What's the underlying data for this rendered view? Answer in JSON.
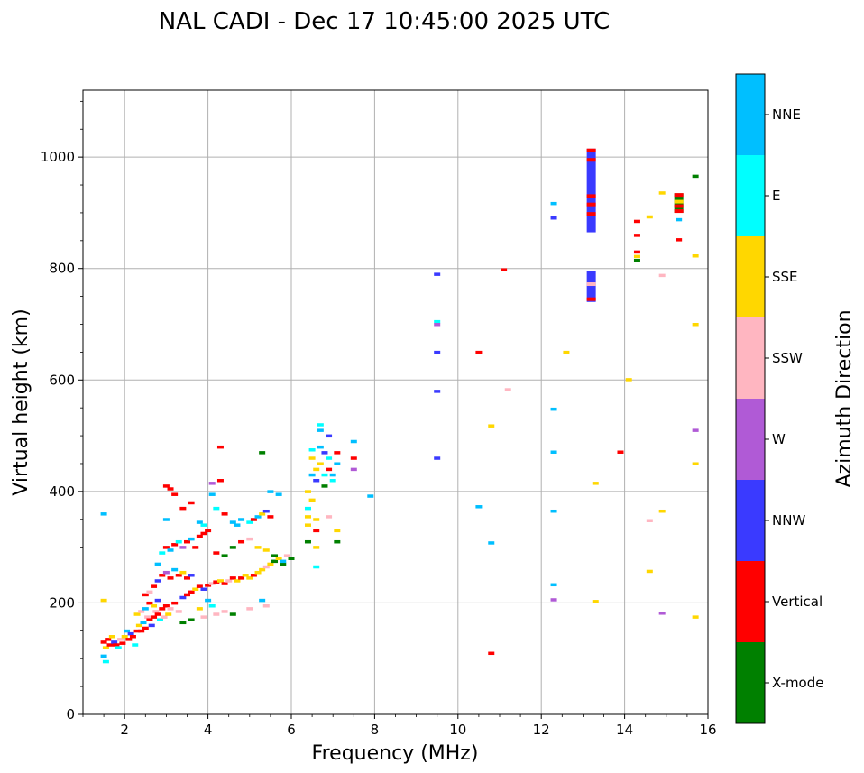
{
  "chart_data": {
    "type": "scatter",
    "title": "NAL CADI - Dec 17 10:45:00 2025 UTC",
    "xlabel": "Frequency (MHz)",
    "ylabel": "Virtual height (km)",
    "xlim": [
      1,
      16
    ],
    "ylim": [
      0,
      1120
    ],
    "xticks": [
      2,
      4,
      6,
      8,
      10,
      12,
      14,
      16
    ],
    "yticks": [
      0,
      200,
      400,
      600,
      800,
      1000
    ],
    "grid": true,
    "colorbar": {
      "label": "Azimuth Direction",
      "categories": [
        {
          "name": "X-mode",
          "color": "#008000"
        },
        {
          "name": "Vertical",
          "color": "#ff0000"
        },
        {
          "name": "NNW",
          "color": "#3a3aff"
        },
        {
          "name": "W",
          "color": "#b05ad6"
        },
        {
          "name": "SSW",
          "color": "#ffb6c1"
        },
        {
          "name": "SSE",
          "color": "#ffd700"
        },
        {
          "name": "E",
          "color": "#00ffff"
        },
        {
          "name": "NNE",
          "color": "#00bfff"
        }
      ]
    },
    "points": [
      {
        "f": 1.5,
        "h": 130,
        "c": "Vertical"
      },
      {
        "f": 1.55,
        "h": 120,
        "c": "SSE"
      },
      {
        "f": 1.6,
        "h": 135,
        "c": "Vertical"
      },
      {
        "f": 1.5,
        "h": 105,
        "c": "NNE"
      },
      {
        "f": 1.55,
        "h": 95,
        "c": "E"
      },
      {
        "f": 1.5,
        "h": 205,
        "c": "SSE"
      },
      {
        "f": 1.5,
        "h": 360,
        "c": "NNE"
      },
      {
        "f": 1.65,
        "h": 125,
        "c": "Vertical"
      },
      {
        "f": 1.7,
        "h": 140,
        "c": "SSE"
      },
      {
        "f": 1.75,
        "h": 130,
        "c": "NNW"
      },
      {
        "f": 1.8,
        "h": 125,
        "c": "Vertical"
      },
      {
        "f": 1.85,
        "h": 120,
        "c": "E"
      },
      {
        "f": 1.9,
        "h": 135,
        "c": "SSW"
      },
      {
        "f": 1.95,
        "h": 128,
        "c": "Vertical"
      },
      {
        "f": 2.0,
        "h": 140,
        "c": "SSE"
      },
      {
        "f": 2.05,
        "h": 150,
        "c": "NNE"
      },
      {
        "f": 2.1,
        "h": 135,
        "c": "Vertical"
      },
      {
        "f": 2.15,
        "h": 145,
        "c": "NNW"
      },
      {
        "f": 2.2,
        "h": 140,
        "c": "Vertical"
      },
      {
        "f": 2.25,
        "h": 125,
        "c": "E"
      },
      {
        "f": 2.3,
        "h": 150,
        "c": "Vertical"
      },
      {
        "f": 2.35,
        "h": 160,
        "c": "SSE"
      },
      {
        "f": 2.4,
        "h": 150,
        "c": "Vertical"
      },
      {
        "f": 2.45,
        "h": 165,
        "c": "NNE"
      },
      {
        "f": 2.5,
        "h": 155,
        "c": "Vertical"
      },
      {
        "f": 2.55,
        "h": 175,
        "c": "SSW"
      },
      {
        "f": 2.6,
        "h": 170,
        "c": "Vertical"
      },
      {
        "f": 2.65,
        "h": 160,
        "c": "NNW"
      },
      {
        "f": 2.7,
        "h": 175,
        "c": "Vertical"
      },
      {
        "f": 2.75,
        "h": 185,
        "c": "SSW"
      },
      {
        "f": 2.8,
        "h": 180,
        "c": "Vertical"
      },
      {
        "f": 2.85,
        "h": 170,
        "c": "E"
      },
      {
        "f": 2.9,
        "h": 190,
        "c": "Vertical"
      },
      {
        "f": 2.95,
        "h": 175,
        "c": "SSW"
      },
      {
        "f": 3.0,
        "h": 195,
        "c": "Vertical"
      },
      {
        "f": 3.05,
        "h": 180,
        "c": "SSE"
      },
      {
        "f": 3.1,
        "h": 190,
        "c": "SSW"
      },
      {
        "f": 3.2,
        "h": 200,
        "c": "Vertical"
      },
      {
        "f": 3.3,
        "h": 185,
        "c": "SSW"
      },
      {
        "f": 3.4,
        "h": 210,
        "c": "NNW"
      },
      {
        "f": 3.5,
        "h": 215,
        "c": "Vertical"
      },
      {
        "f": 3.6,
        "h": 220,
        "c": "Vertical"
      },
      {
        "f": 3.7,
        "h": 225,
        "c": "SSE"
      },
      {
        "f": 3.8,
        "h": 230,
        "c": "Vertical"
      },
      {
        "f": 3.9,
        "h": 225,
        "c": "NNW"
      },
      {
        "f": 4.0,
        "h": 232,
        "c": "Vertical"
      },
      {
        "f": 4.1,
        "h": 235,
        "c": "SSW"
      },
      {
        "f": 4.2,
        "h": 238,
        "c": "Vertical"
      },
      {
        "f": 4.3,
        "h": 240,
        "c": "SSE"
      },
      {
        "f": 4.4,
        "h": 235,
        "c": "Vertical"
      },
      {
        "f": 4.5,
        "h": 240,
        "c": "SSW"
      },
      {
        "f": 4.6,
        "h": 245,
        "c": "Vertical"
      },
      {
        "f": 4.7,
        "h": 240,
        "c": "SSE"
      },
      {
        "f": 4.8,
        "h": 245,
        "c": "Vertical"
      },
      {
        "f": 4.9,
        "h": 250,
        "c": "SSE"
      },
      {
        "f": 5.0,
        "h": 245,
        "c": "SSE"
      },
      {
        "f": 5.1,
        "h": 250,
        "c": "Vertical"
      },
      {
        "f": 5.2,
        "h": 255,
        "c": "SSE"
      },
      {
        "f": 5.3,
        "h": 260,
        "c": "SSE"
      },
      {
        "f": 5.4,
        "h": 265,
        "c": "SSW"
      },
      {
        "f": 5.5,
        "h": 270,
        "c": "SSE"
      },
      {
        "f": 5.6,
        "h": 275,
        "c": "X-mode"
      },
      {
        "f": 5.7,
        "h": 280,
        "c": "SSE"
      },
      {
        "f": 5.8,
        "h": 270,
        "c": "X-mode"
      },
      {
        "f": 5.9,
        "h": 285,
        "c": "SSW"
      },
      {
        "f": 6.0,
        "h": 280,
        "c": "X-mode"
      },
      {
        "f": 2.3,
        "h": 180,
        "c": "SSE"
      },
      {
        "f": 2.4,
        "h": 185,
        "c": "SSW"
      },
      {
        "f": 2.5,
        "h": 190,
        "c": "NNE"
      },
      {
        "f": 2.6,
        "h": 200,
        "c": "Vertical"
      },
      {
        "f": 2.7,
        "h": 195,
        "c": "SSE"
      },
      {
        "f": 2.8,
        "h": 205,
        "c": "NNW"
      },
      {
        "f": 2.5,
        "h": 215,
        "c": "Vertical"
      },
      {
        "f": 2.6,
        "h": 220,
        "c": "SSW"
      },
      {
        "f": 2.7,
        "h": 230,
        "c": "Vertical"
      },
      {
        "f": 2.8,
        "h": 240,
        "c": "NNW"
      },
      {
        "f": 2.9,
        "h": 250,
        "c": "Vertical"
      },
      {
        "f": 3.0,
        "h": 255,
        "c": "W"
      },
      {
        "f": 3.1,
        "h": 245,
        "c": "Vertical"
      },
      {
        "f": 3.2,
        "h": 260,
        "c": "NNE"
      },
      {
        "f": 3.3,
        "h": 250,
        "c": "Vertical"
      },
      {
        "f": 3.4,
        "h": 255,
        "c": "SSE"
      },
      {
        "f": 3.5,
        "h": 245,
        "c": "Vertical"
      },
      {
        "f": 3.6,
        "h": 250,
        "c": "NNW"
      },
      {
        "f": 2.8,
        "h": 270,
        "c": "NNE"
      },
      {
        "f": 2.9,
        "h": 290,
        "c": "E"
      },
      {
        "f": 3.0,
        "h": 300,
        "c": "Vertical"
      },
      {
        "f": 3.1,
        "h": 295,
        "c": "NNE"
      },
      {
        "f": 3.2,
        "h": 305,
        "c": "Vertical"
      },
      {
        "f": 3.3,
        "h": 310,
        "c": "E"
      },
      {
        "f": 3.4,
        "h": 300,
        "c": "W"
      },
      {
        "f": 3.5,
        "h": 310,
        "c": "Vertical"
      },
      {
        "f": 3.6,
        "h": 315,
        "c": "NNE"
      },
      {
        "f": 3.7,
        "h": 300,
        "c": "Vertical"
      },
      {
        "f": 3.8,
        "h": 320,
        "c": "Vertical"
      },
      {
        "f": 3.9,
        "h": 325,
        "c": "Vertical"
      },
      {
        "f": 4.0,
        "h": 330,
        "c": "Vertical"
      },
      {
        "f": 3.8,
        "h": 345,
        "c": "NNE"
      },
      {
        "f": 3.9,
        "h": 340,
        "c": "E"
      },
      {
        "f": 3.0,
        "h": 410,
        "c": "Vertical"
      },
      {
        "f": 3.1,
        "h": 405,
        "c": "Vertical"
      },
      {
        "f": 3.2,
        "h": 395,
        "c": "Vertical"
      },
      {
        "f": 3.0,
        "h": 350,
        "c": "NNE"
      },
      {
        "f": 3.4,
        "h": 370,
        "c": "Vertical"
      },
      {
        "f": 3.6,
        "h": 380,
        "c": "Vertical"
      },
      {
        "f": 4.1,
        "h": 395,
        "c": "NNE"
      },
      {
        "f": 4.1,
        "h": 415,
        "c": "W"
      },
      {
        "f": 4.3,
        "h": 420,
        "c": "Vertical"
      },
      {
        "f": 4.3,
        "h": 480,
        "c": "Vertical"
      },
      {
        "f": 4.2,
        "h": 370,
        "c": "E"
      },
      {
        "f": 4.4,
        "h": 360,
        "c": "Vertical"
      },
      {
        "f": 4.6,
        "h": 345,
        "c": "NNE"
      },
      {
        "f": 4.7,
        "h": 340,
        "c": "NNE"
      },
      {
        "f": 4.8,
        "h": 350,
        "c": "NNE"
      },
      {
        "f": 5.0,
        "h": 345,
        "c": "E"
      },
      {
        "f": 5.1,
        "h": 350,
        "c": "Vertical"
      },
      {
        "f": 5.2,
        "h": 355,
        "c": "NNE"
      },
      {
        "f": 5.3,
        "h": 360,
        "c": "SSE"
      },
      {
        "f": 5.4,
        "h": 365,
        "c": "NNW"
      },
      {
        "f": 5.5,
        "h": 355,
        "c": "Vertical"
      },
      {
        "f": 4.2,
        "h": 290,
        "c": "Vertical"
      },
      {
        "f": 4.4,
        "h": 285,
        "c": "X-mode"
      },
      {
        "f": 4.6,
        "h": 300,
        "c": "X-mode"
      },
      {
        "f": 4.8,
        "h": 310,
        "c": "Vertical"
      },
      {
        "f": 5.0,
        "h": 315,
        "c": "SSW"
      },
      {
        "f": 5.2,
        "h": 300,
        "c": "SSE"
      },
      {
        "f": 5.4,
        "h": 295,
        "c": "SSE"
      },
      {
        "f": 5.6,
        "h": 285,
        "c": "X-mode"
      },
      {
        "f": 5.8,
        "h": 275,
        "c": "NNE"
      },
      {
        "f": 3.4,
        "h": 165,
        "c": "X-mode"
      },
      {
        "f": 3.6,
        "h": 170,
        "c": "X-mode"
      },
      {
        "f": 3.9,
        "h": 175,
        "c": "SSW"
      },
      {
        "f": 4.2,
        "h": 180,
        "c": "SSW"
      },
      {
        "f": 4.4,
        "h": 185,
        "c": "SSW"
      },
      {
        "f": 4.6,
        "h": 180,
        "c": "X-mode"
      },
      {
        "f": 5.0,
        "h": 190,
        "c": "SSW"
      },
      {
        "f": 5.4,
        "h": 195,
        "c": "SSW"
      },
      {
        "f": 5.3,
        "h": 205,
        "c": "NNE"
      },
      {
        "f": 4.1,
        "h": 195,
        "c": "E"
      },
      {
        "f": 4.0,
        "h": 205,
        "c": "NNE"
      },
      {
        "f": 3.8,
        "h": 190,
        "c": "SSE"
      },
      {
        "f": 5.3,
        "h": 470,
        "c": "X-mode"
      },
      {
        "f": 5.5,
        "h": 400,
        "c": "NNE"
      },
      {
        "f": 5.7,
        "h": 395,
        "c": "NNE"
      },
      {
        "f": 6.4,
        "h": 310,
        "c": "X-mode"
      },
      {
        "f": 6.4,
        "h": 340,
        "c": "SSE"
      },
      {
        "f": 6.4,
        "h": 355,
        "c": "SSE"
      },
      {
        "f": 6.4,
        "h": 370,
        "c": "E"
      },
      {
        "f": 6.5,
        "h": 385,
        "c": "SSE"
      },
      {
        "f": 6.4,
        "h": 400,
        "c": "SSE"
      },
      {
        "f": 6.5,
        "h": 430,
        "c": "NNE"
      },
      {
        "f": 6.5,
        "h": 460,
        "c": "SSE"
      },
      {
        "f": 6.5,
        "h": 475,
        "c": "E"
      },
      {
        "f": 6.6,
        "h": 420,
        "c": "NNW"
      },
      {
        "f": 6.6,
        "h": 440,
        "c": "SSE"
      },
      {
        "f": 6.6,
        "h": 350,
        "c": "SSE"
      },
      {
        "f": 6.6,
        "h": 330,
        "c": "Vertical"
      },
      {
        "f": 6.6,
        "h": 300,
        "c": "SSE"
      },
      {
        "f": 6.6,
        "h": 265,
        "c": "E"
      },
      {
        "f": 6.7,
        "h": 450,
        "c": "SSE"
      },
      {
        "f": 6.7,
        "h": 480,
        "c": "NNE"
      },
      {
        "f": 6.7,
        "h": 520,
        "c": "E"
      },
      {
        "f": 6.7,
        "h": 510,
        "c": "NNE"
      },
      {
        "f": 6.8,
        "h": 470,
        "c": "NNW"
      },
      {
        "f": 6.8,
        "h": 430,
        "c": "E"
      },
      {
        "f": 6.8,
        "h": 410,
        "c": "X-mode"
      },
      {
        "f": 6.9,
        "h": 500,
        "c": "NNW"
      },
      {
        "f": 6.9,
        "h": 460,
        "c": "E"
      },
      {
        "f": 6.9,
        "h": 440,
        "c": "Vertical"
      },
      {
        "f": 7.0,
        "h": 430,
        "c": "NNE"
      },
      {
        "f": 7.0,
        "h": 420,
        "c": "E"
      },
      {
        "f": 6.9,
        "h": 355,
        "c": "SSW"
      },
      {
        "f": 7.1,
        "h": 330,
        "c": "SSE"
      },
      {
        "f": 7.1,
        "h": 310,
        "c": "X-mode"
      },
      {
        "f": 7.1,
        "h": 450,
        "c": "NNE"
      },
      {
        "f": 7.1,
        "h": 470,
        "c": "Vertical"
      },
      {
        "f": 7.5,
        "h": 440,
        "c": "W"
      },
      {
        "f": 7.5,
        "h": 460,
        "c": "Vertical"
      },
      {
        "f": 7.5,
        "h": 490,
        "c": "NNE"
      },
      {
        "f": 7.9,
        "h": 392,
        "c": "NNE"
      },
      {
        "f": 9.5,
        "h": 790,
        "c": "NNW"
      },
      {
        "f": 9.5,
        "h": 705,
        "c": "E"
      },
      {
        "f": 9.5,
        "h": 700,
        "c": "W"
      },
      {
        "f": 9.5,
        "h": 650,
        "c": "NNW"
      },
      {
        "f": 9.5,
        "h": 580,
        "c": "NNW"
      },
      {
        "f": 9.5,
        "h": 460,
        "c": "NNW"
      },
      {
        "f": 10.5,
        "h": 650,
        "c": "Vertical"
      },
      {
        "f": 10.5,
        "h": 373,
        "c": "NNE"
      },
      {
        "f": 10.8,
        "h": 308,
        "c": "NNE"
      },
      {
        "f": 10.8,
        "h": 518,
        "c": "SSE"
      },
      {
        "f": 10.8,
        "h": 110,
        "c": "Vertical"
      },
      {
        "f": 11.1,
        "h": 798,
        "c": "Vertical"
      },
      {
        "f": 11.2,
        "h": 583,
        "c": "SSW"
      },
      {
        "f": 12.3,
        "h": 917,
        "c": "NNE"
      },
      {
        "f": 12.3,
        "h": 891,
        "c": "NNW"
      },
      {
        "f": 12.3,
        "h": 548,
        "c": "NNE"
      },
      {
        "f": 12.3,
        "h": 471,
        "c": "NNE"
      },
      {
        "f": 12.3,
        "h": 365,
        "c": "NNE"
      },
      {
        "f": 12.3,
        "h": 233,
        "c": "NNE"
      },
      {
        "f": 12.3,
        "h": 206,
        "c": "W"
      },
      {
        "f": 12.6,
        "h": 650,
        "c": "SSE"
      },
      {
        "f": 13.3,
        "h": 415,
        "c": "SSE"
      },
      {
        "f": 13.3,
        "h": 203,
        "c": "SSE"
      },
      {
        "f": 13.9,
        "h": 471,
        "c": "Vertical"
      },
      {
        "f": 14.1,
        "h": 601,
        "c": "SSE"
      },
      {
        "f": 14.3,
        "h": 885,
        "c": "Vertical"
      },
      {
        "f": 14.3,
        "h": 860,
        "c": "Vertical"
      },
      {
        "f": 14.3,
        "h": 830,
        "c": "Vertical"
      },
      {
        "f": 14.3,
        "h": 822,
        "c": "SSE"
      },
      {
        "f": 14.3,
        "h": 815,
        "c": "X-mode"
      },
      {
        "f": 14.6,
        "h": 893,
        "c": "SSE"
      },
      {
        "f": 14.6,
        "h": 348,
        "c": "SSW"
      },
      {
        "f": 14.6,
        "h": 257,
        "c": "SSE"
      },
      {
        "f": 14.9,
        "h": 936,
        "c": "SSE"
      },
      {
        "f": 14.9,
        "h": 788,
        "c": "SSW"
      },
      {
        "f": 14.9,
        "h": 365,
        "c": "SSE"
      },
      {
        "f": 14.9,
        "h": 182,
        "c": "W"
      },
      {
        "f": 15.3,
        "h": 888,
        "c": "NNE"
      },
      {
        "f": 15.3,
        "h": 852,
        "c": "Vertical"
      },
      {
        "f": 15.7,
        "h": 966,
        "c": "X-mode"
      },
      {
        "f": 15.7,
        "h": 823,
        "c": "SSE"
      },
      {
        "f": 15.7,
        "h": 700,
        "c": "SSE"
      },
      {
        "f": 15.7,
        "h": 510,
        "c": "W"
      },
      {
        "f": 15.7,
        "h": 450,
        "c": "SSE"
      },
      {
        "f": 15.7,
        "h": 175,
        "c": "SSE"
      }
    ],
    "columns": [
      {
        "f": 13.2,
        "h0": 865,
        "h1": 1015,
        "c": "NNW"
      },
      {
        "f": 13.2,
        "h0": 740,
        "h1": 795,
        "c": "NNW"
      },
      {
        "f": 15.3,
        "h0": 900,
        "h1": 935,
        "c": "X-mode"
      }
    ],
    "column_marks": [
      {
        "f": 13.2,
        "h": 1012,
        "c": "Vertical"
      },
      {
        "f": 13.2,
        "h": 995,
        "c": "Vertical"
      },
      {
        "f": 13.2,
        "h": 930,
        "c": "Vertical"
      },
      {
        "f": 13.2,
        "h": 915,
        "c": "Vertical"
      },
      {
        "f": 13.2,
        "h": 898,
        "c": "Vertical"
      },
      {
        "f": 13.2,
        "h": 745,
        "c": "Vertical"
      },
      {
        "f": 13.2,
        "h": 772,
        "c": "SSW"
      },
      {
        "f": 15.3,
        "h": 932,
        "c": "Vertical"
      },
      {
        "f": 15.3,
        "h": 920,
        "c": "SSE"
      },
      {
        "f": 15.3,
        "h": 912,
        "c": "Vertical"
      },
      {
        "f": 15.3,
        "h": 903,
        "c": "Vertical"
      }
    ]
  }
}
